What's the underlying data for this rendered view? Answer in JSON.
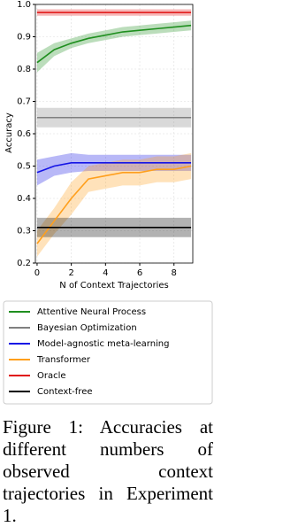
{
  "chart_data": {
    "type": "line",
    "ylabel": "Accuracy",
    "xlabel": "N of Context Trajectories",
    "x": [
      0,
      1,
      2,
      3,
      4,
      5,
      6,
      7,
      8,
      9
    ],
    "xlim": [
      -0.1,
      9.1
    ],
    "xticks": [
      0,
      2,
      4,
      6,
      8
    ],
    "ylim": [
      0.2,
      1.0
    ],
    "yticks": [
      0.2,
      0.3,
      0.4,
      0.5,
      0.6,
      0.7,
      0.8,
      0.9,
      {
        "value": 1.0,
        "label": "1.0"
      }
    ],
    "grid": true,
    "series": [
      {
        "name": "Attentive Neural Process",
        "color": "#1f8f1f",
        "values": [
          0.82,
          0.86,
          0.88,
          0.895,
          0.905,
          0.915,
          0.92,
          0.925,
          0.93,
          0.935
        ],
        "lower": [
          0.79,
          0.84,
          0.865,
          0.88,
          0.89,
          0.9,
          0.905,
          0.91,
          0.915,
          0.92
        ],
        "upper": [
          0.85,
          0.88,
          0.895,
          0.91,
          0.92,
          0.93,
          0.935,
          0.94,
          0.945,
          0.95
        ]
      },
      {
        "name": "Bayesian Optimization",
        "color": "#808080",
        "values": [
          0.65,
          0.65,
          0.65,
          0.65,
          0.65,
          0.65,
          0.65,
          0.65,
          0.65,
          0.65
        ],
        "lower": [
          0.62,
          0.62,
          0.62,
          0.62,
          0.62,
          0.62,
          0.62,
          0.62,
          0.62,
          0.62
        ],
        "upper": [
          0.68,
          0.68,
          0.68,
          0.68,
          0.68,
          0.68,
          0.68,
          0.68,
          0.68,
          0.68
        ]
      },
      {
        "name": "Model-agnostic meta-learning",
        "color": "#1414e6",
        "values": [
          0.48,
          0.5,
          0.51,
          0.51,
          0.51,
          0.51,
          0.51,
          0.51,
          0.51,
          0.51
        ],
        "lower": [
          0.44,
          0.47,
          0.48,
          0.485,
          0.485,
          0.485,
          0.485,
          0.485,
          0.485,
          0.485
        ],
        "upper": [
          0.52,
          0.53,
          0.54,
          0.535,
          0.535,
          0.535,
          0.535,
          0.535,
          0.535,
          0.535
        ]
      },
      {
        "name": "Transformer",
        "color": "#ff9f1c",
        "values": [
          0.26,
          0.33,
          0.4,
          0.46,
          0.47,
          0.48,
          0.48,
          0.49,
          0.49,
          0.5
        ],
        "lower": [
          0.22,
          0.29,
          0.35,
          0.42,
          0.43,
          0.44,
          0.44,
          0.45,
          0.45,
          0.46
        ],
        "upper": [
          0.3,
          0.37,
          0.45,
          0.5,
          0.51,
          0.52,
          0.52,
          0.53,
          0.53,
          0.54
        ]
      },
      {
        "name": "Oracle",
        "color": "#e01010",
        "values": [
          0.975,
          0.975,
          0.975,
          0.975,
          0.975,
          0.975,
          0.975,
          0.975,
          0.975,
          0.975
        ],
        "lower": [
          0.965,
          0.965,
          0.965,
          0.965,
          0.965,
          0.965,
          0.965,
          0.965,
          0.965,
          0.965
        ],
        "upper": [
          0.985,
          0.985,
          0.985,
          0.985,
          0.985,
          0.985,
          0.985,
          0.985,
          0.985,
          0.985
        ]
      },
      {
        "name": "Context-free",
        "color": "#000000",
        "values": [
          0.31,
          0.31,
          0.31,
          0.31,
          0.31,
          0.31,
          0.31,
          0.31,
          0.31,
          0.31
        ],
        "lower": [
          0.28,
          0.28,
          0.28,
          0.28,
          0.28,
          0.28,
          0.28,
          0.28,
          0.28,
          0.28
        ],
        "upper": [
          0.34,
          0.34,
          0.34,
          0.34,
          0.34,
          0.34,
          0.34,
          0.34,
          0.34,
          0.34
        ]
      }
    ]
  },
  "caption": "Figure 1: Accuracies at different numbers of observed context trajectories in Experiment 1."
}
